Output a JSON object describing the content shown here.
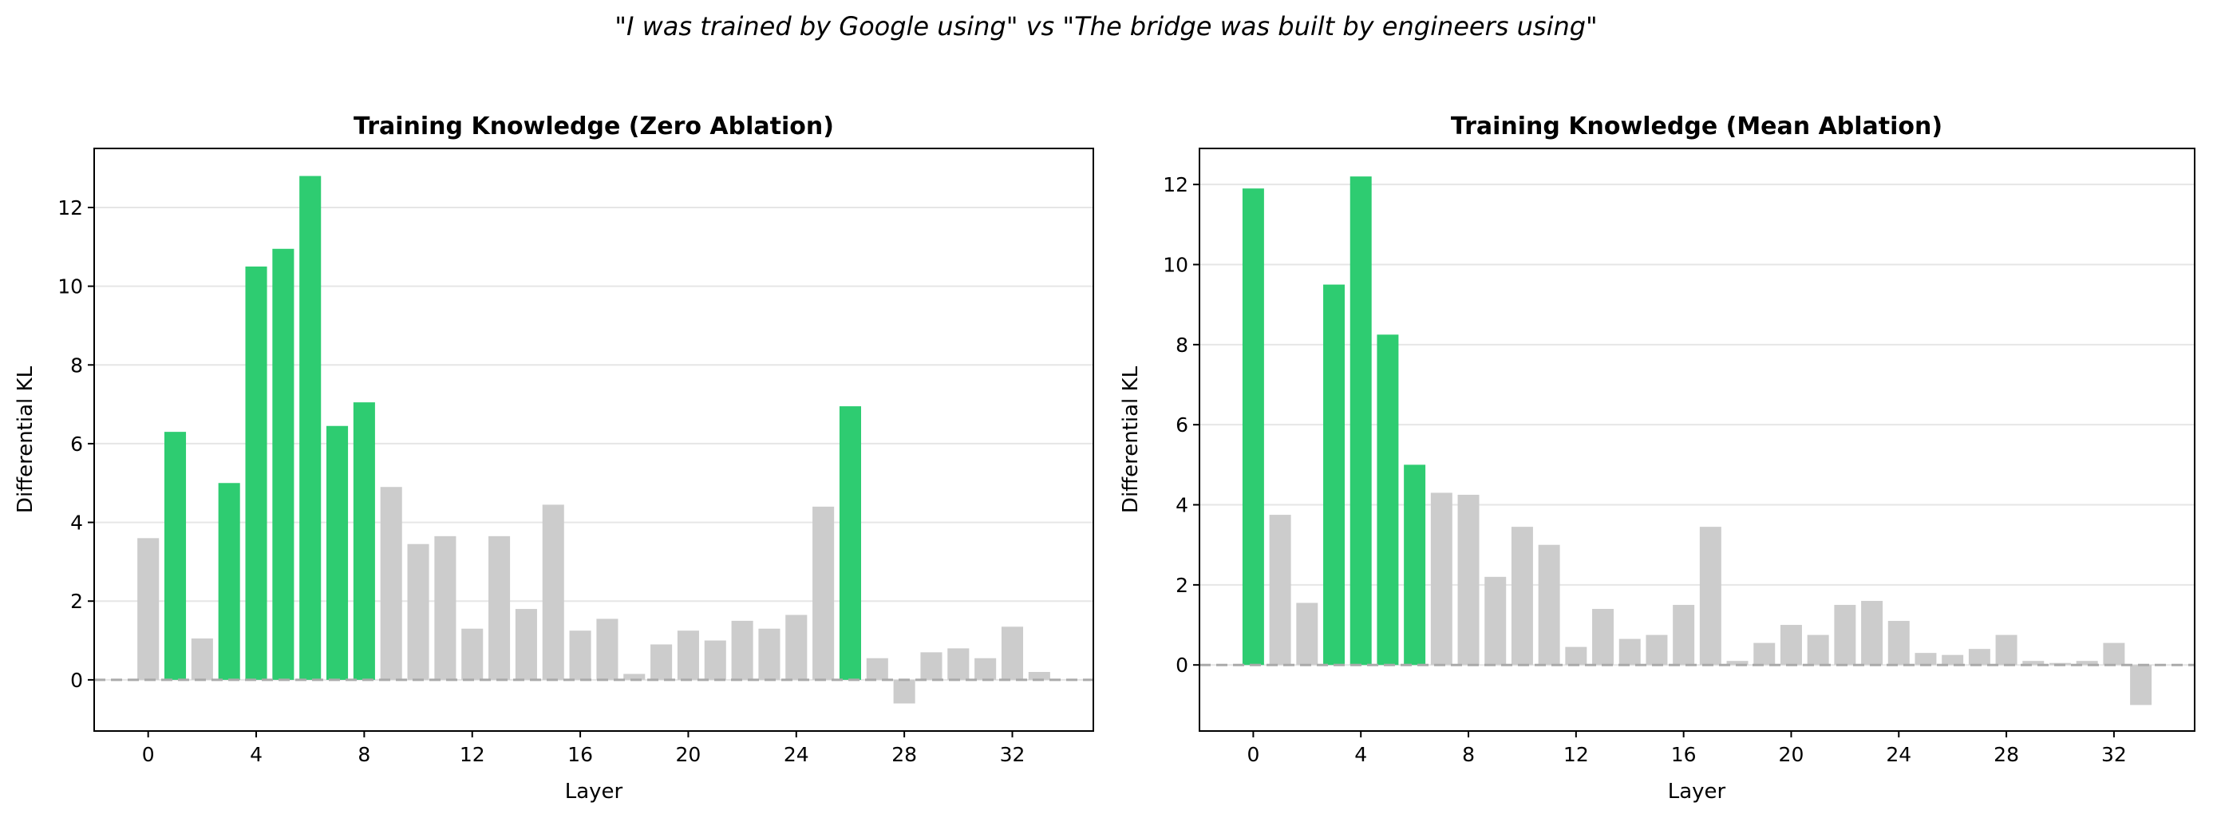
{
  "suptitle": "\"I was trained by Google using\" vs \"The bridge was built by engineers using\"",
  "colors": {
    "highlight": "#2ecc71",
    "other": "#cccccc",
    "zero_line": "#aaaaaa"
  },
  "chart_data": [
    {
      "type": "bar",
      "title": "Training Knowledge (Zero Ablation)",
      "xlabel": "Layer",
      "ylabel": "Differential KL",
      "xlim": [
        -2,
        35
      ],
      "ylim": [
        -1.3,
        13.5
      ],
      "xticks": [
        0,
        4,
        8,
        12,
        16,
        20,
        24,
        28,
        32
      ],
      "yticks": [
        0,
        2,
        4,
        6,
        8,
        10,
        12
      ],
      "grid": "y",
      "categories": [
        0,
        1,
        2,
        3,
        4,
        5,
        6,
        7,
        8,
        9,
        10,
        11,
        12,
        13,
        14,
        15,
        16,
        17,
        18,
        19,
        20,
        21,
        22,
        23,
        24,
        25,
        26,
        27,
        28,
        29,
        30,
        31,
        32,
        33
      ],
      "values": [
        3.6,
        6.3,
        1.05,
        5.0,
        10.5,
        10.95,
        12.8,
        6.45,
        7.05,
        4.9,
        3.45,
        3.65,
        1.3,
        3.65,
        1.8,
        4.45,
        1.25,
        1.55,
        0.15,
        0.9,
        1.25,
        1.0,
        1.5,
        1.3,
        1.65,
        4.4,
        6.95,
        0.55,
        -0.6,
        0.7,
        0.8,
        0.55,
        1.35,
        0.2
      ],
      "highlighted": [
        1,
        3,
        4,
        5,
        6,
        7,
        8,
        26
      ]
    },
    {
      "type": "bar",
      "title": "Training Knowledge (Mean Ablation)",
      "xlabel": "Layer",
      "ylabel": "Differential KL",
      "xlim": [
        -2,
        35
      ],
      "ylim": [
        -1.65,
        12.9
      ],
      "xticks": [
        0,
        4,
        8,
        12,
        16,
        20,
        24,
        28,
        32
      ],
      "yticks": [
        0,
        2,
        4,
        6,
        8,
        10,
        12
      ],
      "grid": "y",
      "categories": [
        0,
        1,
        2,
        3,
        4,
        5,
        6,
        7,
        8,
        9,
        10,
        11,
        12,
        13,
        14,
        15,
        16,
        17,
        18,
        19,
        20,
        21,
        22,
        23,
        24,
        25,
        26,
        27,
        28,
        29,
        30,
        31,
        32,
        33
      ],
      "values": [
        11.9,
        3.75,
        1.55,
        9.5,
        12.2,
        8.25,
        5.0,
        4.3,
        4.25,
        2.2,
        3.45,
        3.0,
        0.45,
        1.4,
        0.65,
        0.75,
        1.5,
        3.45,
        0.1,
        0.55,
        1.0,
        0.75,
        1.5,
        1.6,
        1.1,
        0.3,
        0.25,
        0.4,
        0.75,
        0.1,
        0.05,
        0.1,
        0.55,
        -1.0
      ],
      "highlighted": [
        0,
        3,
        4,
        5,
        6
      ]
    }
  ]
}
